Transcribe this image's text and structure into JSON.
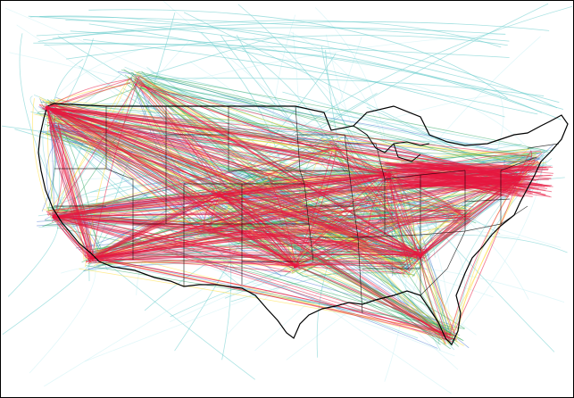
{
  "map": {
    "background_color": "#ffffff",
    "frame_color": "#000000",
    "outline_color": "#000000",
    "state_border_color": "#000000",
    "route_colors": {
      "very_light": "#c8f0f4",
      "light": "#66cccc",
      "low": "#3366cc",
      "medium": "#33aa66",
      "high": "#ffdd33",
      "very_high": "#e8173f"
    }
  }
}
